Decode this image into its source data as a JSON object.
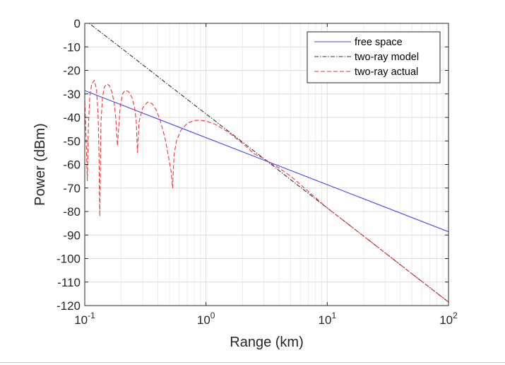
{
  "chart_data": {
    "type": "line",
    "title": "",
    "xlabel": "Range (km)",
    "ylabel": "Power (dBm)",
    "xscale": "log",
    "xlim": [
      0.1,
      100
    ],
    "ylim": [
      -120,
      0
    ],
    "grid": true,
    "minor_grid": true,
    "legend_position": "top-right",
    "x_ticks": [
      {
        "value": 0.1,
        "base": "10",
        "exp": "-1"
      },
      {
        "value": 1,
        "base": "10",
        "exp": "0"
      },
      {
        "value": 10,
        "base": "10",
        "exp": "1"
      },
      {
        "value": 100,
        "base": "10",
        "exp": "2"
      }
    ],
    "y_ticks": [
      {
        "value": 0,
        "label": "0"
      },
      {
        "value": -10,
        "label": "-10"
      },
      {
        "value": -20,
        "label": "-20"
      },
      {
        "value": -30,
        "label": "-30"
      },
      {
        "value": -40,
        "label": "-40"
      },
      {
        "value": -50,
        "label": "-50"
      },
      {
        "value": -60,
        "label": "-60"
      },
      {
        "value": -70,
        "label": "-70"
      },
      {
        "value": -80,
        "label": "-80"
      },
      {
        "value": -90,
        "label": "-90"
      },
      {
        "value": -100,
        "label": "-100"
      },
      {
        "value": -110,
        "label": "-110"
      },
      {
        "value": -120,
        "label": "-120"
      }
    ],
    "series": [
      {
        "name": "free space",
        "color": "#4444ff",
        "dash": "solid",
        "x": [
          0.1,
          100
        ],
        "y": [
          -28.6,
          -88.6
        ]
      },
      {
        "name": "two-ray model",
        "color": "#333333",
        "dash": "dashdot",
        "x": [
          0.1,
          0.12,
          0.2,
          0.5,
          1,
          2,
          3.5,
          5,
          10,
          20,
          50,
          100
        ],
        "y": [
          1.5,
          -1.7,
          -10.5,
          -26.5,
          -38.5,
          -50.5,
          -60.2,
          -66.5,
          -78.5,
          -90.5,
          -106.5,
          -118.5
        ]
      },
      {
        "name": "two-ray actual",
        "color": "#ff3333",
        "dash": "dashed",
        "x": [
          0.1,
          0.103,
          0.105,
          0.107,
          0.11,
          0.114,
          0.12,
          0.125,
          0.129,
          0.131,
          0.133,
          0.136,
          0.14,
          0.145,
          0.152,
          0.16,
          0.168,
          0.175,
          0.18,
          0.186,
          0.19,
          0.196,
          0.205,
          0.215,
          0.23,
          0.245,
          0.258,
          0.266,
          0.272,
          0.28,
          0.3,
          0.33,
          0.36,
          0.39,
          0.42,
          0.46,
          0.49,
          0.515,
          0.53,
          0.545,
          0.57,
          0.62,
          0.7,
          0.8,
          0.9,
          1.0,
          1.2,
          1.5,
          2.0,
          2.5,
          3.0,
          3.5,
          4.0,
          5,
          7,
          10,
          20,
          50,
          100
        ],
        "y": [
          -33,
          -52,
          -67,
          -45,
          -31,
          -25.8,
          -24.2,
          -28,
          -40,
          -55,
          -82,
          -42,
          -31.5,
          -27,
          -25.8,
          -26.5,
          -29.5,
          -34,
          -40,
          -52,
          -45,
          -35.5,
          -30,
          -28.5,
          -29,
          -31.5,
          -36,
          -42,
          -55,
          -42,
          -36,
          -33.4,
          -34.2,
          -37,
          -41.5,
          -49,
          -56.5,
          -63,
          -70,
          -56,
          -50,
          -45.5,
          -42.5,
          -41.3,
          -41.2,
          -41.5,
          -43,
          -46,
          -51,
          -55.5,
          -57.5,
          -59.8,
          -61.5,
          -65,
          -71.5,
          -78.5,
          -90.5,
          -106.5,
          -118.5
        ]
      }
    ]
  }
}
